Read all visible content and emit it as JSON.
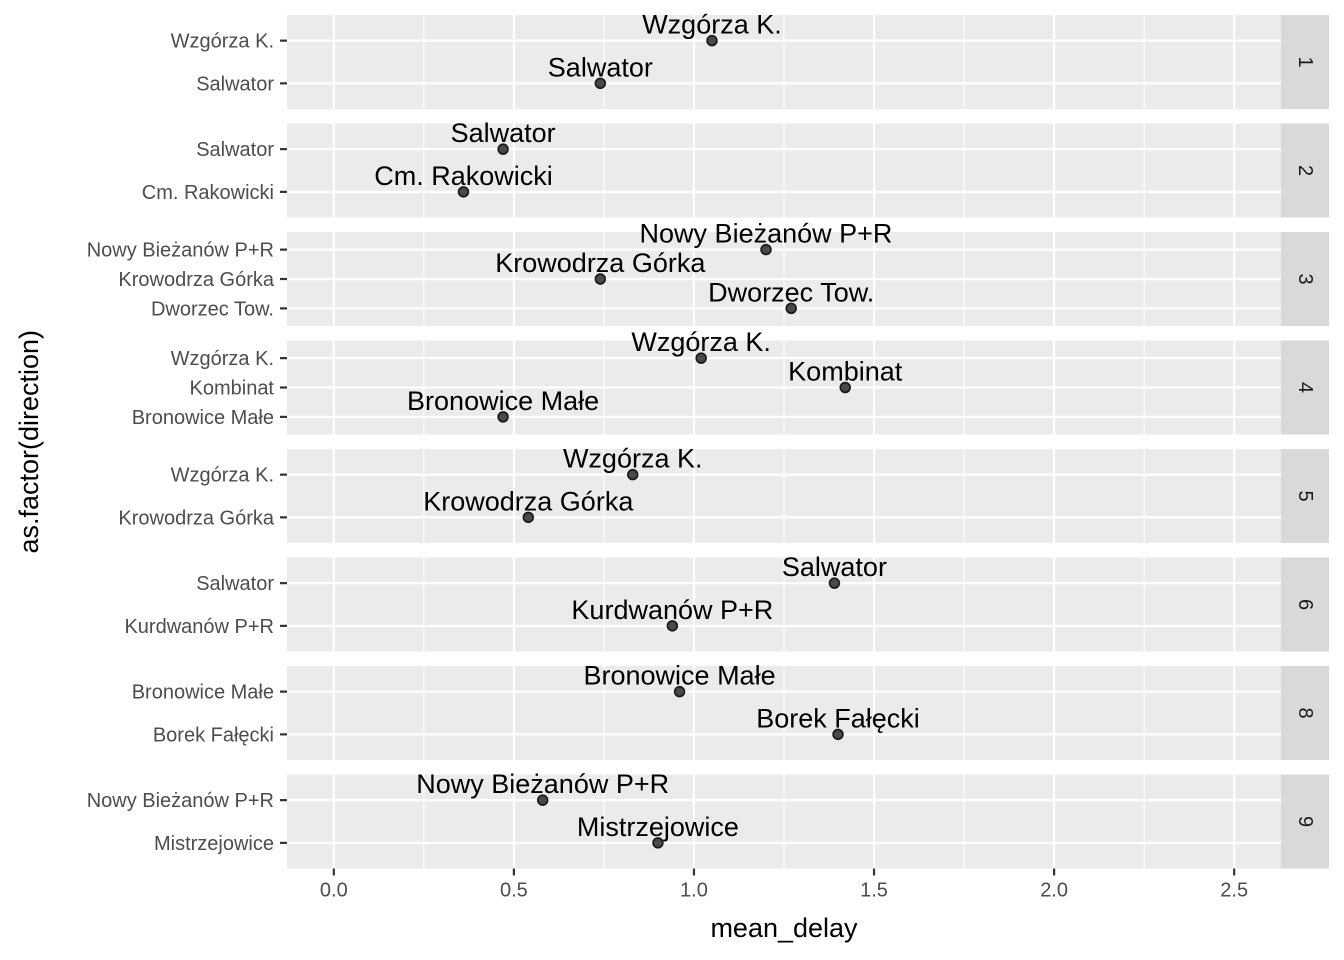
{
  "chart_data": {
    "type": "scatter",
    "facet_by": "row",
    "xlabel": "mean_delay",
    "ylabel": "as.factor(direction)",
    "xlim": [
      -0.13,
      2.63
    ],
    "x_ticks": [
      0.0,
      0.5,
      1.0,
      1.5,
      2.0,
      2.5
    ],
    "x_tick_labels": [
      "0.0",
      "0.5",
      "1.0",
      "1.5",
      "2.0",
      "2.5"
    ],
    "grid": true,
    "point_labels": true,
    "panels": [
      {
        "strip": "1",
        "points": [
          {
            "direction": "Wzgórza K.",
            "mean_delay": 1.05
          },
          {
            "direction": "Salwator",
            "mean_delay": 0.74
          }
        ]
      },
      {
        "strip": "2",
        "points": [
          {
            "direction": "Salwator",
            "mean_delay": 0.47
          },
          {
            "direction": "Cm. Rakowicki",
            "mean_delay": 0.36
          }
        ]
      },
      {
        "strip": "3",
        "points": [
          {
            "direction": "Nowy Bieżanów P+R",
            "mean_delay": 1.2
          },
          {
            "direction": "Krowodrza Górka",
            "mean_delay": 0.74
          },
          {
            "direction": "Dworzec Tow.",
            "mean_delay": 1.27
          }
        ]
      },
      {
        "strip": "4",
        "points": [
          {
            "direction": "Wzgórza K.",
            "mean_delay": 1.02
          },
          {
            "direction": "Kombinat",
            "mean_delay": 1.42
          },
          {
            "direction": "Bronowice Małe",
            "mean_delay": 0.47
          }
        ]
      },
      {
        "strip": "5",
        "points": [
          {
            "direction": "Wzgórza K.",
            "mean_delay": 0.83
          },
          {
            "direction": "Krowodrza Górka",
            "mean_delay": 0.54
          }
        ]
      },
      {
        "strip": "6",
        "points": [
          {
            "direction": "Salwator",
            "mean_delay": 1.39
          },
          {
            "direction": "Kurdwanów P+R",
            "mean_delay": 0.94
          }
        ]
      },
      {
        "strip": "8",
        "points": [
          {
            "direction": "Bronowice Małe",
            "mean_delay": 0.96
          },
          {
            "direction": "Borek Fałęcki",
            "mean_delay": 1.4
          }
        ]
      },
      {
        "strip": "9",
        "points": [
          {
            "direction": "Nowy Bieżanów P+R",
            "mean_delay": 0.58
          },
          {
            "direction": "Mistrzejowice",
            "mean_delay": 0.9
          }
        ]
      }
    ]
  }
}
